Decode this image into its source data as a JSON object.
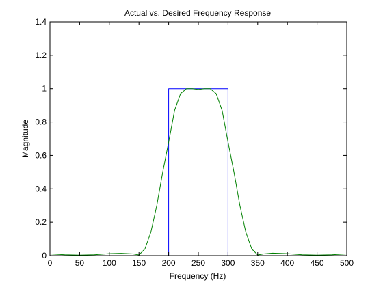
{
  "chart_data": {
    "type": "line",
    "title": "Actual vs. Desired Frequency Response",
    "xlabel": "Frequency (Hz)",
    "ylabel": "Magnitude",
    "xlim": [
      0,
      500
    ],
    "ylim": [
      0,
      1.4
    ],
    "xticks": [
      0,
      50,
      100,
      150,
      200,
      250,
      300,
      350,
      400,
      450,
      500
    ],
    "yticks": [
      0,
      0.2,
      0.4,
      0.6,
      0.8,
      1,
      1.2,
      1.4
    ],
    "xtick_labels": [
      "0",
      "50",
      "100",
      "150",
      "200",
      "250",
      "300",
      "350",
      "400",
      "450",
      "500"
    ],
    "ytick_labels": [
      "0",
      "0.2",
      "0.4",
      "0.6",
      "0.8",
      "1",
      "1.2",
      "1.4"
    ],
    "grid": false,
    "legend": "none",
    "series": [
      {
        "color": "#0000ff",
        "x": [
          0,
          200,
          200,
          300,
          300,
          500
        ],
        "y": [
          0,
          0,
          1,
          1,
          0,
          0
        ]
      },
      {
        "color": "#008000",
        "x": [
          0,
          25,
          50,
          75,
          100,
          120,
          140,
          150,
          160,
          170,
          180,
          190,
          200,
          210,
          220,
          230,
          240,
          250,
          260,
          270,
          280,
          290,
          300,
          310,
          320,
          330,
          340,
          350,
          360,
          375,
          400,
          425,
          450,
          475,
          500
        ],
        "y": [
          0.01,
          0.005,
          0.003,
          0.005,
          0.012,
          0.014,
          0.01,
          0.004,
          0.04,
          0.14,
          0.3,
          0.5,
          0.68,
          0.87,
          0.97,
          1.0,
          1.0,
          0.995,
          1.0,
          1.0,
          0.97,
          0.87,
          0.68,
          0.5,
          0.3,
          0.14,
          0.04,
          0.004,
          0.01,
          0.015,
          0.012,
          0.005,
          0.003,
          0.005,
          0.01
        ]
      }
    ]
  }
}
